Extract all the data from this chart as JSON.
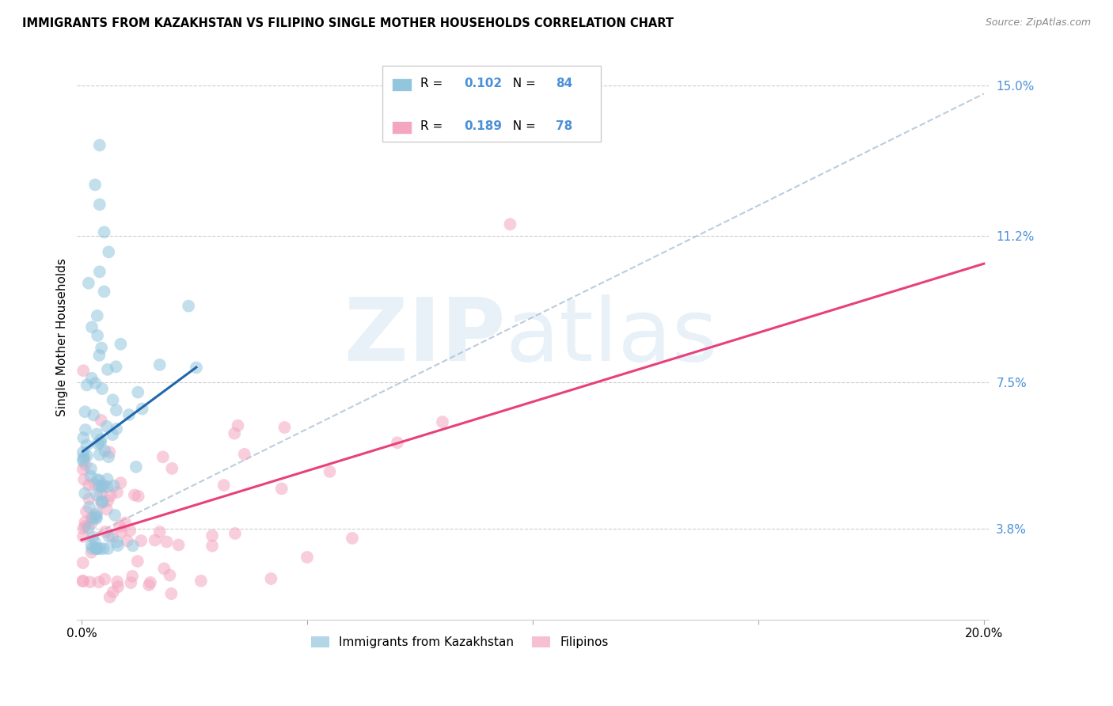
{
  "title": "IMMIGRANTS FROM KAZAKHSTAN VS FILIPINO SINGLE MOTHER HOUSEHOLDS CORRELATION CHART",
  "source": "Source: ZipAtlas.com",
  "ylabel": "Single Mother Households",
  "yticks": [
    "3.8%",
    "7.5%",
    "11.2%",
    "15.0%"
  ],
  "ytick_vals": [
    0.038,
    0.075,
    0.112,
    0.15
  ],
  "xlim": [
    0.0,
    0.2
  ],
  "ylim": [
    0.015,
    0.158
  ],
  "legend1_label": "Immigrants from Kazakhstan",
  "legend2_label": "Filipinos",
  "R1": "0.102",
  "N1": "84",
  "R2": "0.189",
  "N2": "78",
  "color_blue": "#92c5de",
  "color_pink": "#f4a6c0",
  "line_blue": "#2166ac",
  "line_pink": "#e8417a",
  "dashed_color": "#b0c4d8",
  "tick_color": "#4a90d9"
}
